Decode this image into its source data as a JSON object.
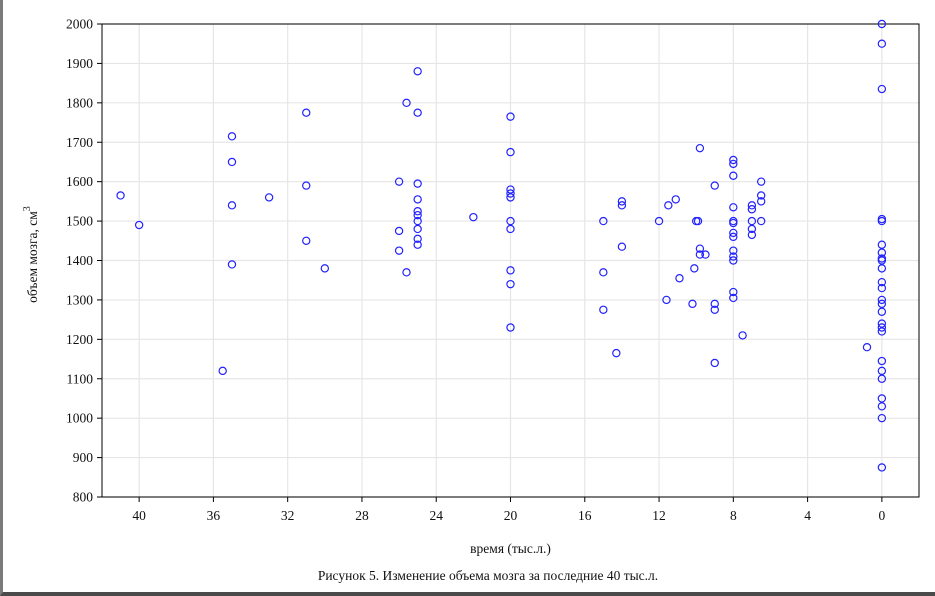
{
  "chart_data": {
    "type": "scatter",
    "title": "",
    "caption": "Рисунок 5. Изменение объема мозга за последние 40 тыс.л.",
    "xlabel": "время (тыс.л.)",
    "ylabel": "объем мозга, см",
    "ylabel_superscript": "3",
    "xlim": [
      42,
      -2
    ],
    "ylim": [
      800,
      2000
    ],
    "x_reversed": true,
    "x_ticks": [
      40,
      36,
      32,
      28,
      24,
      20,
      16,
      12,
      8,
      4,
      0
    ],
    "y_ticks": [
      800,
      900,
      1000,
      1100,
      1200,
      1300,
      1400,
      1500,
      1600,
      1700,
      1800,
      1900,
      2000
    ],
    "grid": true,
    "legend": "none",
    "colors": {
      "marker": "#2222ff",
      "grid": "#e6e6e6",
      "axis": "#000000"
    },
    "points": [
      [
        41,
        1565
      ],
      [
        40,
        1490
      ],
      [
        35.5,
        1120
      ],
      [
        35,
        1715
      ],
      [
        35,
        1650
      ],
      [
        35,
        1540
      ],
      [
        35,
        1390
      ],
      [
        33,
        1560
      ],
      [
        31,
        1775
      ],
      [
        31,
        1590
      ],
      [
        31,
        1450
      ],
      [
        30,
        1380
      ],
      [
        26,
        1600
      ],
      [
        26,
        1475
      ],
      [
        26,
        1425
      ],
      [
        25.6,
        1800
      ],
      [
        25.6,
        1370
      ],
      [
        25,
        1880
      ],
      [
        25,
        1775
      ],
      [
        25,
        1595
      ],
      [
        25,
        1555
      ],
      [
        25,
        1525
      ],
      [
        25,
        1515
      ],
      [
        25,
        1500
      ],
      [
        25,
        1480
      ],
      [
        25,
        1455
      ],
      [
        25,
        1440
      ],
      [
        22,
        1510
      ],
      [
        20,
        1765
      ],
      [
        20,
        1675
      ],
      [
        20,
        1580
      ],
      [
        20,
        1570
      ],
      [
        20,
        1560
      ],
      [
        20,
        1500
      ],
      [
        20,
        1480
      ],
      [
        20,
        1375
      ],
      [
        20,
        1340
      ],
      [
        20,
        1230
      ],
      [
        15,
        1500
      ],
      [
        15,
        1370
      ],
      [
        15,
        1275
      ],
      [
        14.3,
        1165
      ],
      [
        14,
        1550
      ],
      [
        14,
        1540
      ],
      [
        14,
        1435
      ],
      [
        12,
        1500
      ],
      [
        11.6,
        1300
      ],
      [
        11.5,
        1540
      ],
      [
        11.1,
        1555
      ],
      [
        10.9,
        1355
      ],
      [
        10.2,
        1290
      ],
      [
        10.1,
        1380
      ],
      [
        10,
        1500
      ],
      [
        9.9,
        1500
      ],
      [
        9.8,
        1685
      ],
      [
        9.8,
        1430
      ],
      [
        9.8,
        1415
      ],
      [
        9.5,
        1415
      ],
      [
        9,
        1590
      ],
      [
        9,
        1290
      ],
      [
        9,
        1275
      ],
      [
        9,
        1140
      ],
      [
        8,
        1655
      ],
      [
        8,
        1645
      ],
      [
        8,
        1615
      ],
      [
        8,
        1535
      ],
      [
        8,
        1500
      ],
      [
        8,
        1495
      ],
      [
        8,
        1470
      ],
      [
        8,
        1460
      ],
      [
        8,
        1425
      ],
      [
        8,
        1410
      ],
      [
        8,
        1400
      ],
      [
        8,
        1320
      ],
      [
        8,
        1305
      ],
      [
        7.5,
        1210
      ],
      [
        7,
        1540
      ],
      [
        7,
        1530
      ],
      [
        7,
        1500
      ],
      [
        7,
        1480
      ],
      [
        7,
        1465
      ],
      [
        6.5,
        1600
      ],
      [
        6.5,
        1565
      ],
      [
        6.5,
        1550
      ],
      [
        6.5,
        1500
      ],
      [
        0.8,
        1180
      ],
      [
        0,
        2000
      ],
      [
        0,
        1950
      ],
      [
        0,
        1835
      ],
      [
        0,
        1505
      ],
      [
        0,
        1500
      ],
      [
        0,
        1440
      ],
      [
        0,
        1420
      ],
      [
        0,
        1405
      ],
      [
        0,
        1400
      ],
      [
        0,
        1380
      ],
      [
        0,
        1345
      ],
      [
        0,
        1330
      ],
      [
        0,
        1300
      ],
      [
        0,
        1290
      ],
      [
        0,
        1270
      ],
      [
        0,
        1240
      ],
      [
        0,
        1230
      ],
      [
        0,
        1220
      ],
      [
        0,
        1145
      ],
      [
        0,
        1120
      ],
      [
        0,
        1100
      ],
      [
        0,
        1050
      ],
      [
        0,
        1030
      ],
      [
        0,
        1000
      ],
      [
        0,
        875
      ]
    ]
  }
}
